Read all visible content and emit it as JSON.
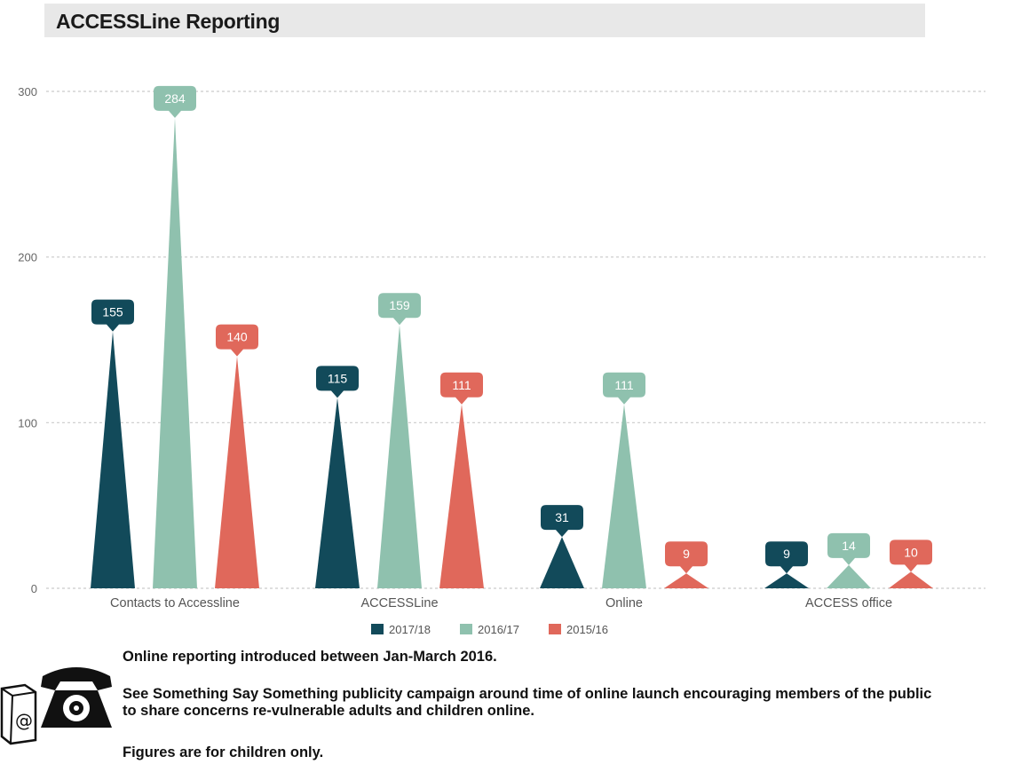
{
  "header": {
    "title": "ACCESSLine Reporting"
  },
  "chart_data": {
    "type": "bar",
    "title": "",
    "xlabel": "",
    "ylabel": "",
    "ylim": [
      0,
      300
    ],
    "yticks": [
      0,
      100,
      200,
      300
    ],
    "grid": true,
    "legend_position": "bottom",
    "categories": [
      "Contacts to Accessline",
      "ACCESSLine",
      "Online",
      "ACCESS office"
    ],
    "series": [
      {
        "name": "2017/18",
        "color": "#124a5a",
        "values": [
          155,
          115,
          31,
          9
        ]
      },
      {
        "name": "2016/17",
        "color": "#8fc1ae",
        "values": [
          284,
          159,
          111,
          14
        ]
      },
      {
        "name": "2015/16",
        "color": "#e0685b",
        "values": [
          140,
          111,
          9,
          10
        ]
      }
    ]
  },
  "notes": {
    "line1": "Online reporting introduced between Jan-March 2016.",
    "line2a": "See Something Say Something publicity campaign around time of online launch encouraging members of the public",
    "line2b": "to share concerns re-vulnerable adults and children online.",
    "line3": "Figures are for children only."
  },
  "icons": {
    "phone": "telephone-icon",
    "email": "email-at-icon"
  }
}
